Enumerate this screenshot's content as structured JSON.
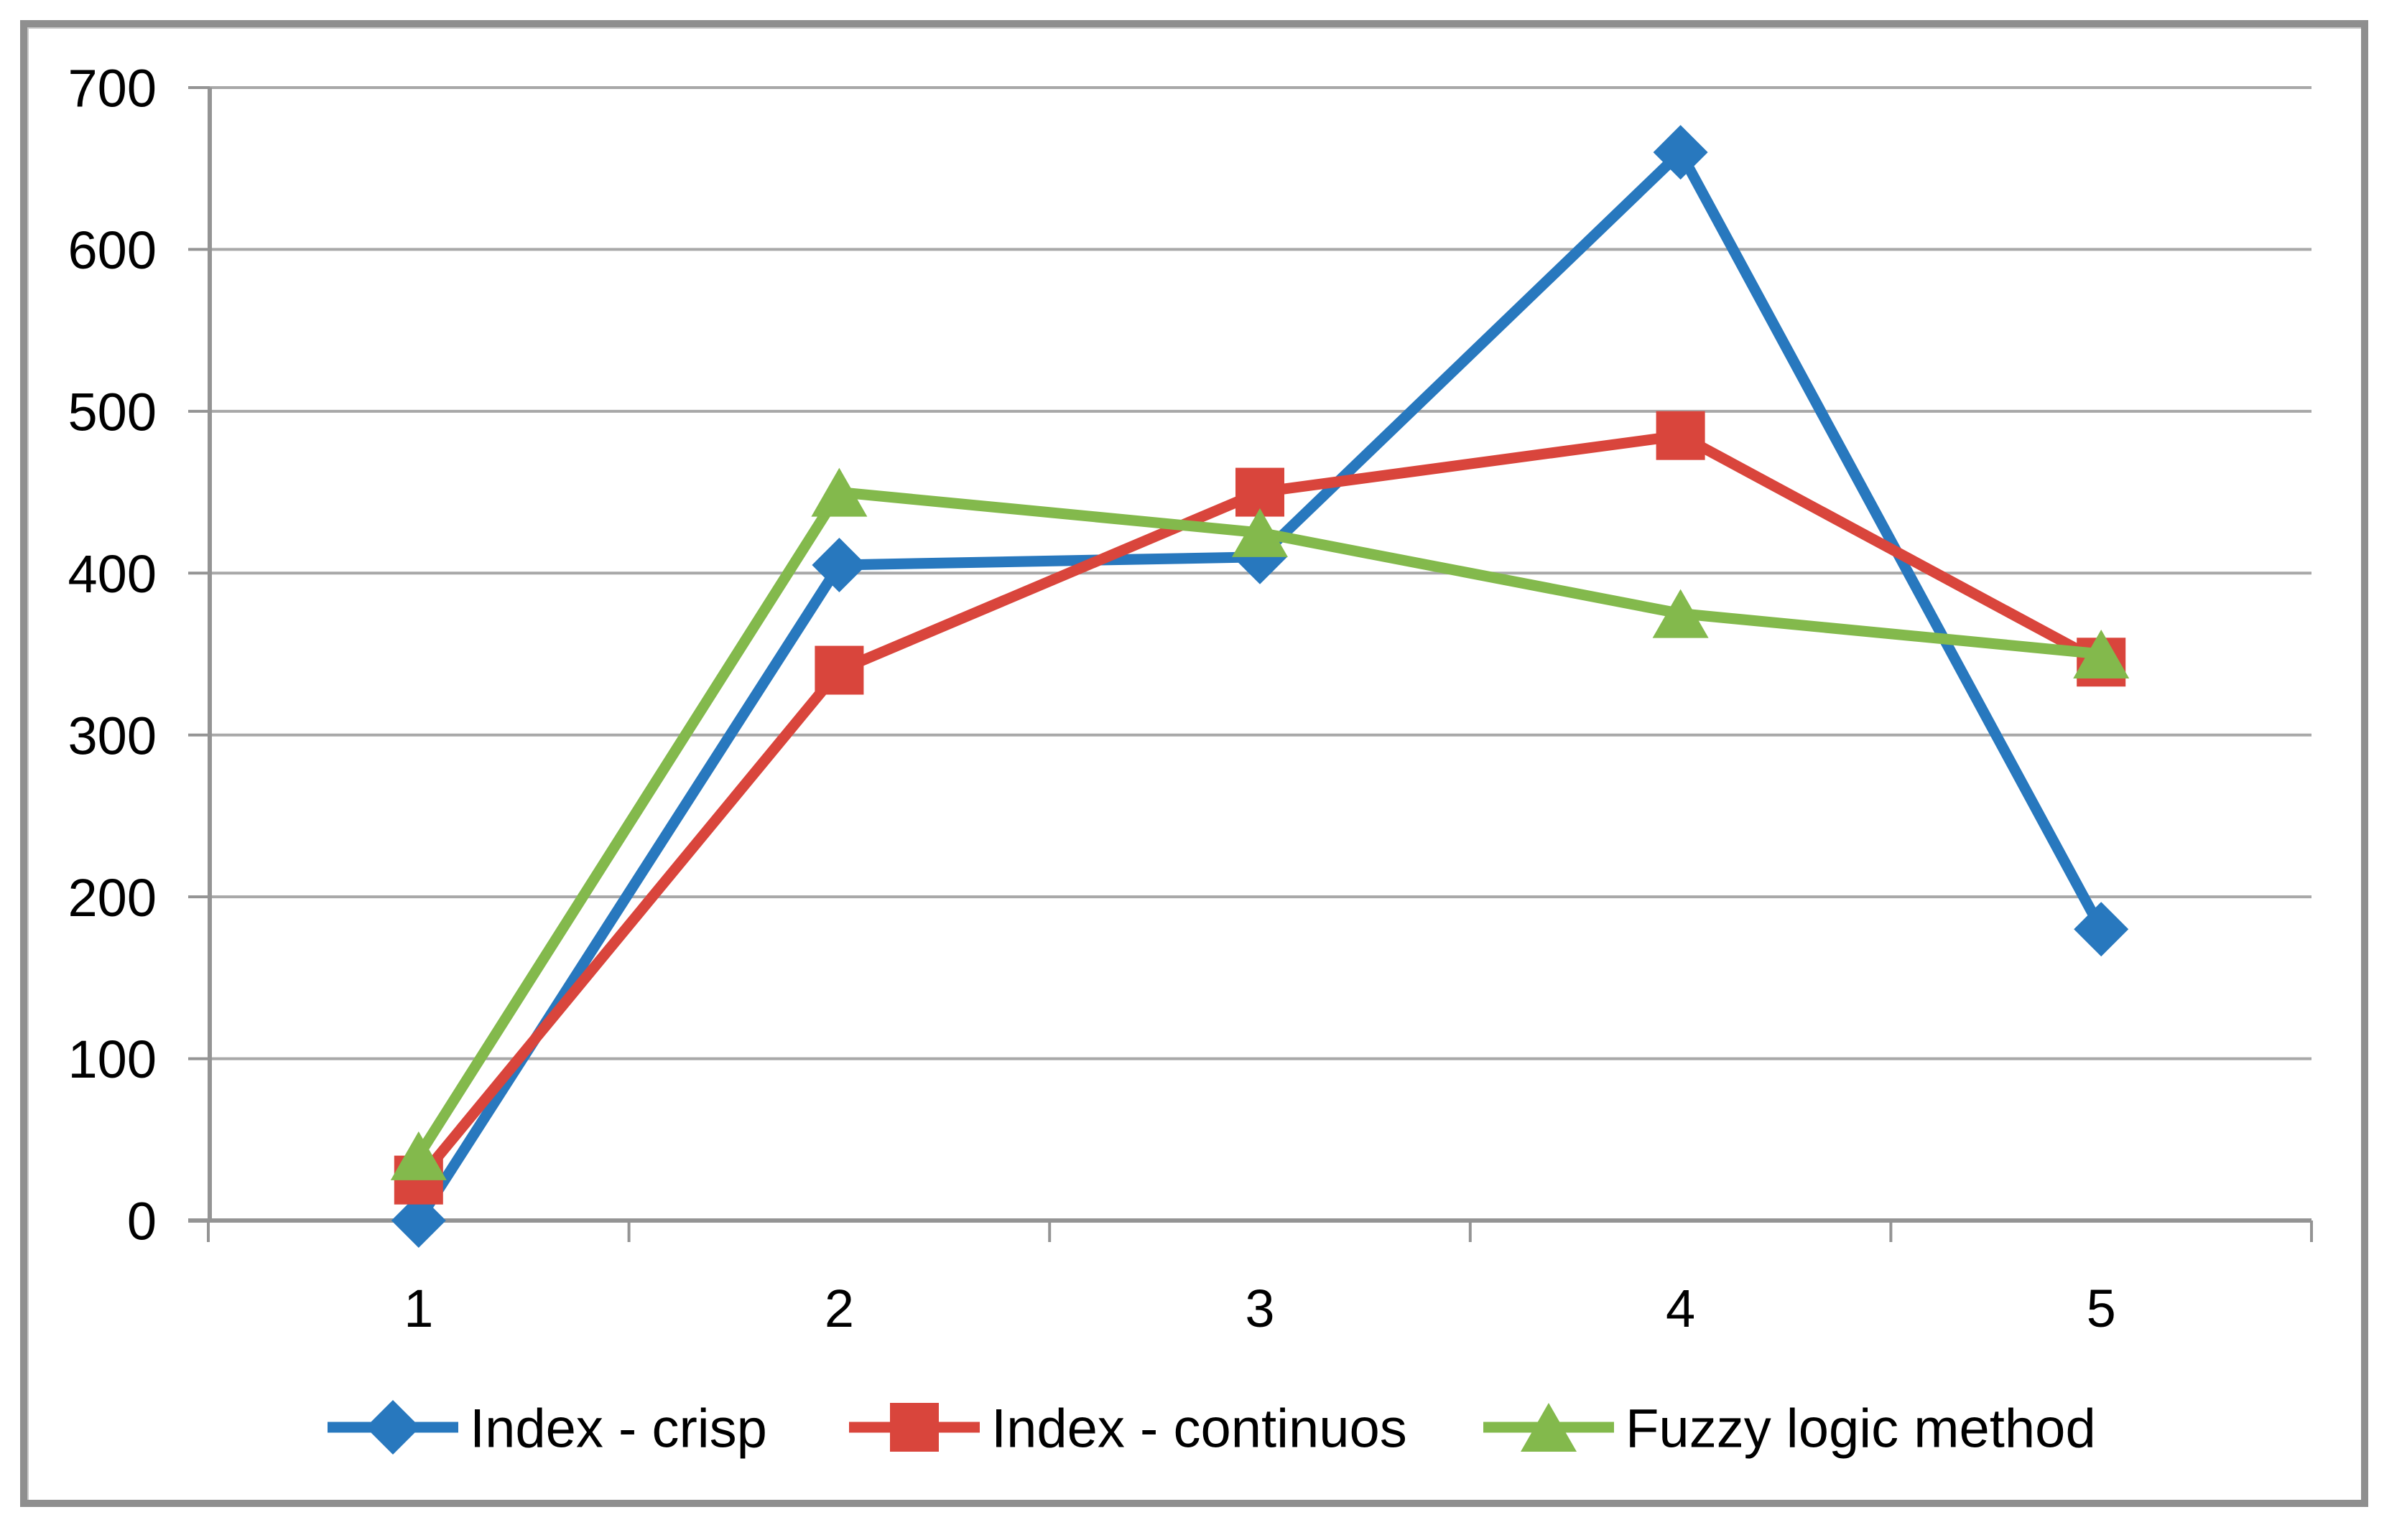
{
  "chart_data": {
    "type": "line",
    "title": "",
    "xlabel": "",
    "ylabel": "",
    "categories": [
      "1",
      "2",
      "3",
      "4",
      "5"
    ],
    "series": [
      {
        "name": "Index - crisp",
        "color": "#2878BE",
        "marker": "diamond",
        "values": [
          0,
          405,
          410,
          660,
          180
        ]
      },
      {
        "name": "Index - continuos",
        "color": "#D9453C",
        "marker": "square",
        "values": [
          25,
          340,
          450,
          485,
          345
        ]
      },
      {
        "name": "Fuzzy logic method",
        "color": "#83B94C",
        "marker": "triangle",
        "values": [
          40,
          450,
          425,
          375,
          350
        ]
      }
    ],
    "ylim": [
      0,
      700
    ],
    "yticks": [
      0,
      100,
      200,
      300,
      400,
      500,
      600,
      700
    ],
    "grid": true,
    "legend_position": "bottom"
  },
  "colors": {
    "grid": "#A8A8A8",
    "axis": "#949494",
    "frame": "#8F8F8F",
    "text": "#000000",
    "background": "#FFFFFF"
  }
}
